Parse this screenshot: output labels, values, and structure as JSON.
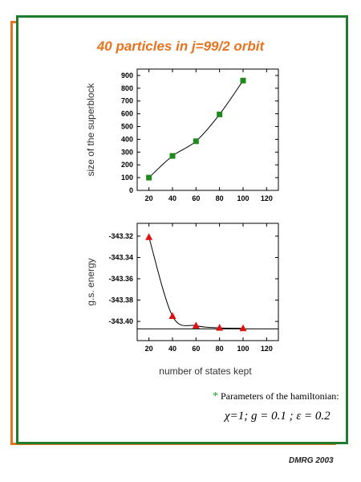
{
  "title": "40 particles in j=99/2 orbit",
  "footer": "DMRG 2003",
  "params": {
    "note_marker": "*",
    "note": "Parameters of the hamiltonian:",
    "values": "χ=1; g = 0.1 ; ε = 0.2"
  },
  "shared_xlabel": "number of states kept",
  "colors": {
    "frame_orange": "#e8731f",
    "frame_green": "#1e7d2c",
    "square_marker": "#1e8a1e",
    "triangle_marker": "#e01010"
  },
  "chart_data": [
    {
      "type": "line",
      "ylabel": "size of the superblock",
      "xlim": [
        10,
        130
      ],
      "ylim": [
        0,
        950
      ],
      "xticks": [
        20,
        40,
        60,
        80,
        100,
        120
      ],
      "yticks": [
        0,
        100,
        200,
        300,
        400,
        500,
        600,
        700,
        800,
        900
      ],
      "marker": "square",
      "x": [
        20,
        40,
        60,
        80,
        100
      ],
      "y": [
        100,
        270,
        385,
        595,
        860
      ]
    },
    {
      "type": "line",
      "ylabel": "g.s. energy",
      "xlim": [
        10,
        130
      ],
      "ylim": [
        -343.418,
        -343.308
      ],
      "xticks": [
        20,
        40,
        60,
        80,
        100,
        120
      ],
      "yticks": [
        -343.32,
        -343.34,
        -343.36,
        -343.38,
        -343.4
      ],
      "ytick_labels": [
        "-343.32",
        "-343.34",
        "-343.36",
        "-343.38",
        "-343.40"
      ],
      "marker": "triangle",
      "x": [
        20,
        40,
        60,
        80,
        100
      ],
      "y": [
        -343.321,
        -343.395,
        -343.404,
        -343.406,
        -343.4065
      ],
      "reference_line": -343.407
    }
  ]
}
